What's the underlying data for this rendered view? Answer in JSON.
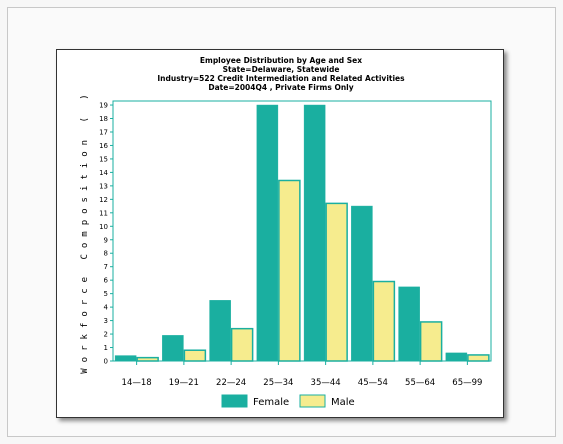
{
  "colors": {
    "female": "#1aafa0",
    "male": "#f6ec8e",
    "axis": "#1aafa0",
    "bar_outline": "#1aafa0"
  },
  "chart_data": {
    "type": "bar",
    "title_lines": [
      "Employee Distribution by Age and Sex",
      "State=Delaware, Statewide",
      "Industry=522 Credit Intermediation and Related Activities",
      "Date=2004Q4 , Private Firms Only"
    ],
    "ylabel": "Workforce Composition ( )",
    "xlabel": "",
    "categories": [
      "14-18",
      "19-21",
      "22-24",
      "25-34",
      "35-44",
      "45-54",
      "55-64",
      "65-99"
    ],
    "category_labels": [
      "14—18",
      "19—21",
      "22—24",
      "25—34",
      "35—44",
      "45—54",
      "55—64",
      "65—99"
    ],
    "series": [
      {
        "name": "Female",
        "values": [
          0.4,
          1.9,
          4.5,
          19.0,
          19.0,
          11.5,
          5.5,
          0.6
        ]
      },
      {
        "name": "Male",
        "values": [
          0.25,
          0.8,
          2.4,
          13.4,
          11.7,
          5.9,
          2.9,
          0.45
        ]
      }
    ],
    "yticks": [
      0,
      1,
      2,
      3,
      4,
      5,
      6,
      7,
      8,
      9,
      10,
      11,
      12,
      13,
      14,
      15,
      16,
      17,
      18,
      19
    ],
    "ylim": [
      0,
      19.3
    ],
    "grid": false,
    "legend_position": "bottom"
  }
}
